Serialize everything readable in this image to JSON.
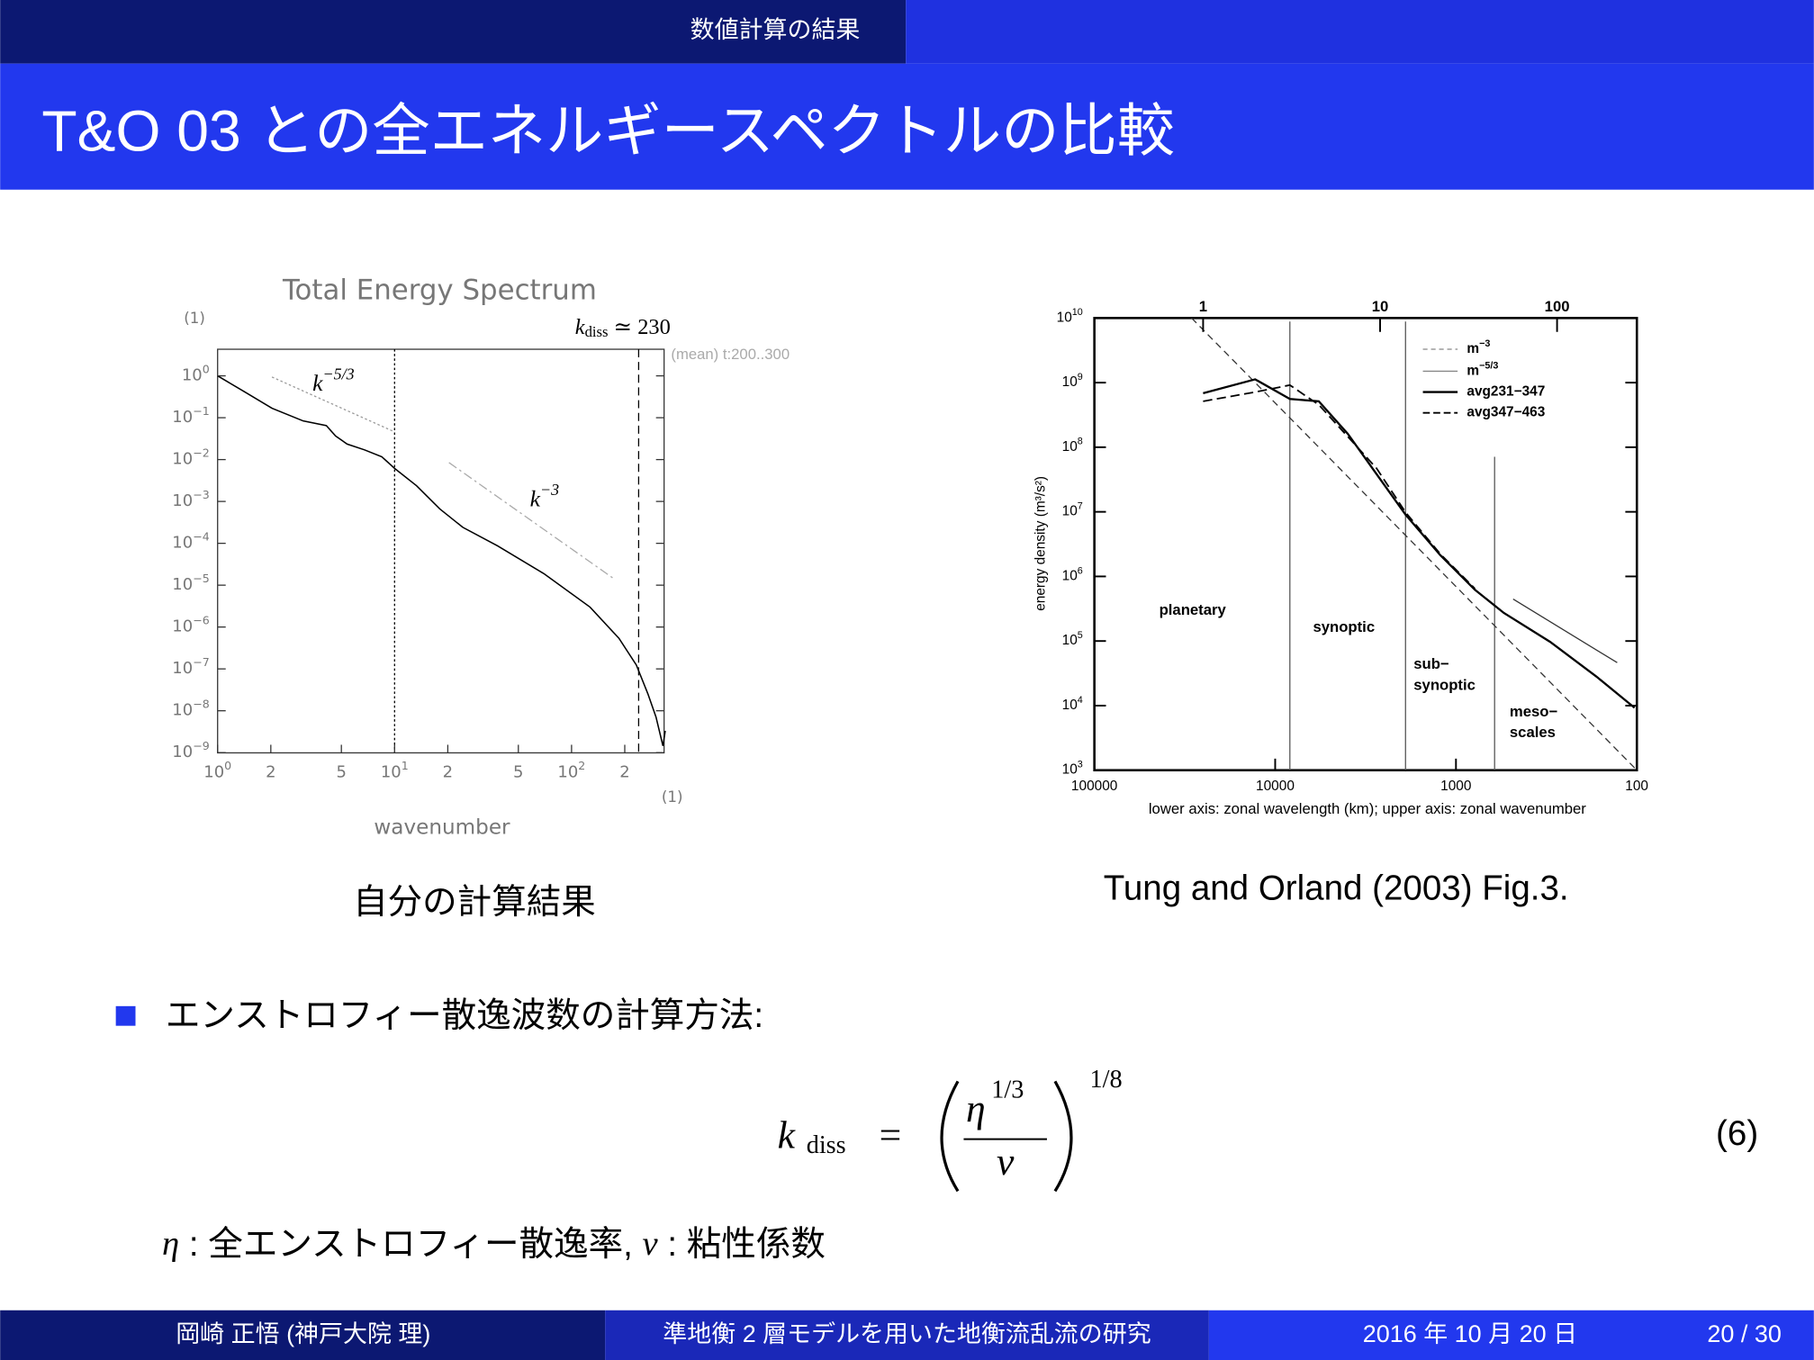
{
  "header": {
    "section": "数値計算の結果",
    "title": "T&O 03 との全エネルギースペクトルの比較"
  },
  "figures": [
    {
      "title": "Total Energy Spectrum",
      "y_unit": "(1)",
      "x_unit": "(1)",
      "x_label": "wavenumber",
      "note": "(mean) t:200..300",
      "yticks": [
        {
          "base": "10",
          "exp": "0"
        },
        {
          "base": "10",
          "exp": "−1"
        },
        {
          "base": "10",
          "exp": "−2"
        },
        {
          "base": "10",
          "exp": "−3"
        },
        {
          "base": "10",
          "exp": "−4"
        },
        {
          "base": "10",
          "exp": "−5"
        },
        {
          "base": "10",
          "exp": "−6"
        },
        {
          "base": "10",
          "exp": "−7"
        },
        {
          "base": "10",
          "exp": "−8"
        },
        {
          "base": "10",
          "exp": "−9"
        }
      ],
      "xticks": [
        {
          "base": "10",
          "exp": "0"
        },
        {
          "base": "2",
          "exp": ""
        },
        {
          "base": "5",
          "exp": ""
        },
        {
          "base": "10",
          "exp": "1"
        },
        {
          "base": "2",
          "exp": ""
        },
        {
          "base": "5",
          "exp": ""
        },
        {
          "base": "10",
          "exp": "2"
        },
        {
          "base": "2",
          "exp": ""
        }
      ],
      "kdiss": {
        "symbol": "k",
        "sub": "diss",
        "text": " ≃ 230"
      },
      "slopes": [
        {
          "base": "k",
          "exp": "−5/3"
        },
        {
          "base": "k",
          "exp": "−3"
        }
      ],
      "caption": "自分の計算結果"
    },
    {
      "yticks": [
        {
          "base": "10",
          "exp": "10"
        },
        {
          "base": "10",
          "exp": "9"
        },
        {
          "base": "10",
          "exp": "8"
        },
        {
          "base": "10",
          "exp": "7"
        },
        {
          "base": "10",
          "exp": "6"
        },
        {
          "base": "10",
          "exp": "5"
        },
        {
          "base": "10",
          "exp": "4"
        },
        {
          "base": "10",
          "exp": "3"
        }
      ],
      "xticks": [
        "100000",
        "10000",
        "1000",
        "100"
      ],
      "top_xticks": [
        "1",
        "10",
        "100"
      ],
      "y_label": "energy density (m³/s²)",
      "x_label": "lower axis: zonal wavelength (km); upper axis: zonal wavenumber",
      "legend": [
        {
          "base": "m",
          "exp": "−3"
        },
        {
          "base": "m",
          "exp": "−5/3"
        },
        {
          "base": "avg231−347",
          "exp": ""
        },
        {
          "base": "avg347−463",
          "exp": ""
        }
      ],
      "regions": [
        [
          "planetary"
        ],
        [
          "synoptic"
        ],
        [
          "sub−",
          "synoptic"
        ],
        [
          "meso−",
          "scales"
        ]
      ],
      "caption": "Tung and Orland (2003) Fig.3."
    }
  ],
  "bullet": "エンストロフィー散逸波数の計算方法:",
  "equation": {
    "lhs": "k",
    "lhs_sub": "diss",
    "eq": "=",
    "num": "η",
    "num_exp": "1/3",
    "den": "ν",
    "exp": "1/8",
    "number": "(6)"
  },
  "definitions": [
    {
      "symbol": "η",
      "text": " : 全エンストロフィー散逸率, "
    },
    {
      "symbol": "ν",
      "text": " : 粘性係数"
    }
  ],
  "footer": {
    "author": "岡崎 正悟 (神戸大院 理)",
    "talk": "準地衡 2 層モデルを用いた地衡流乱流の研究",
    "date": "2016 年 10 月 20 日",
    "page": "20 / 30"
  }
}
